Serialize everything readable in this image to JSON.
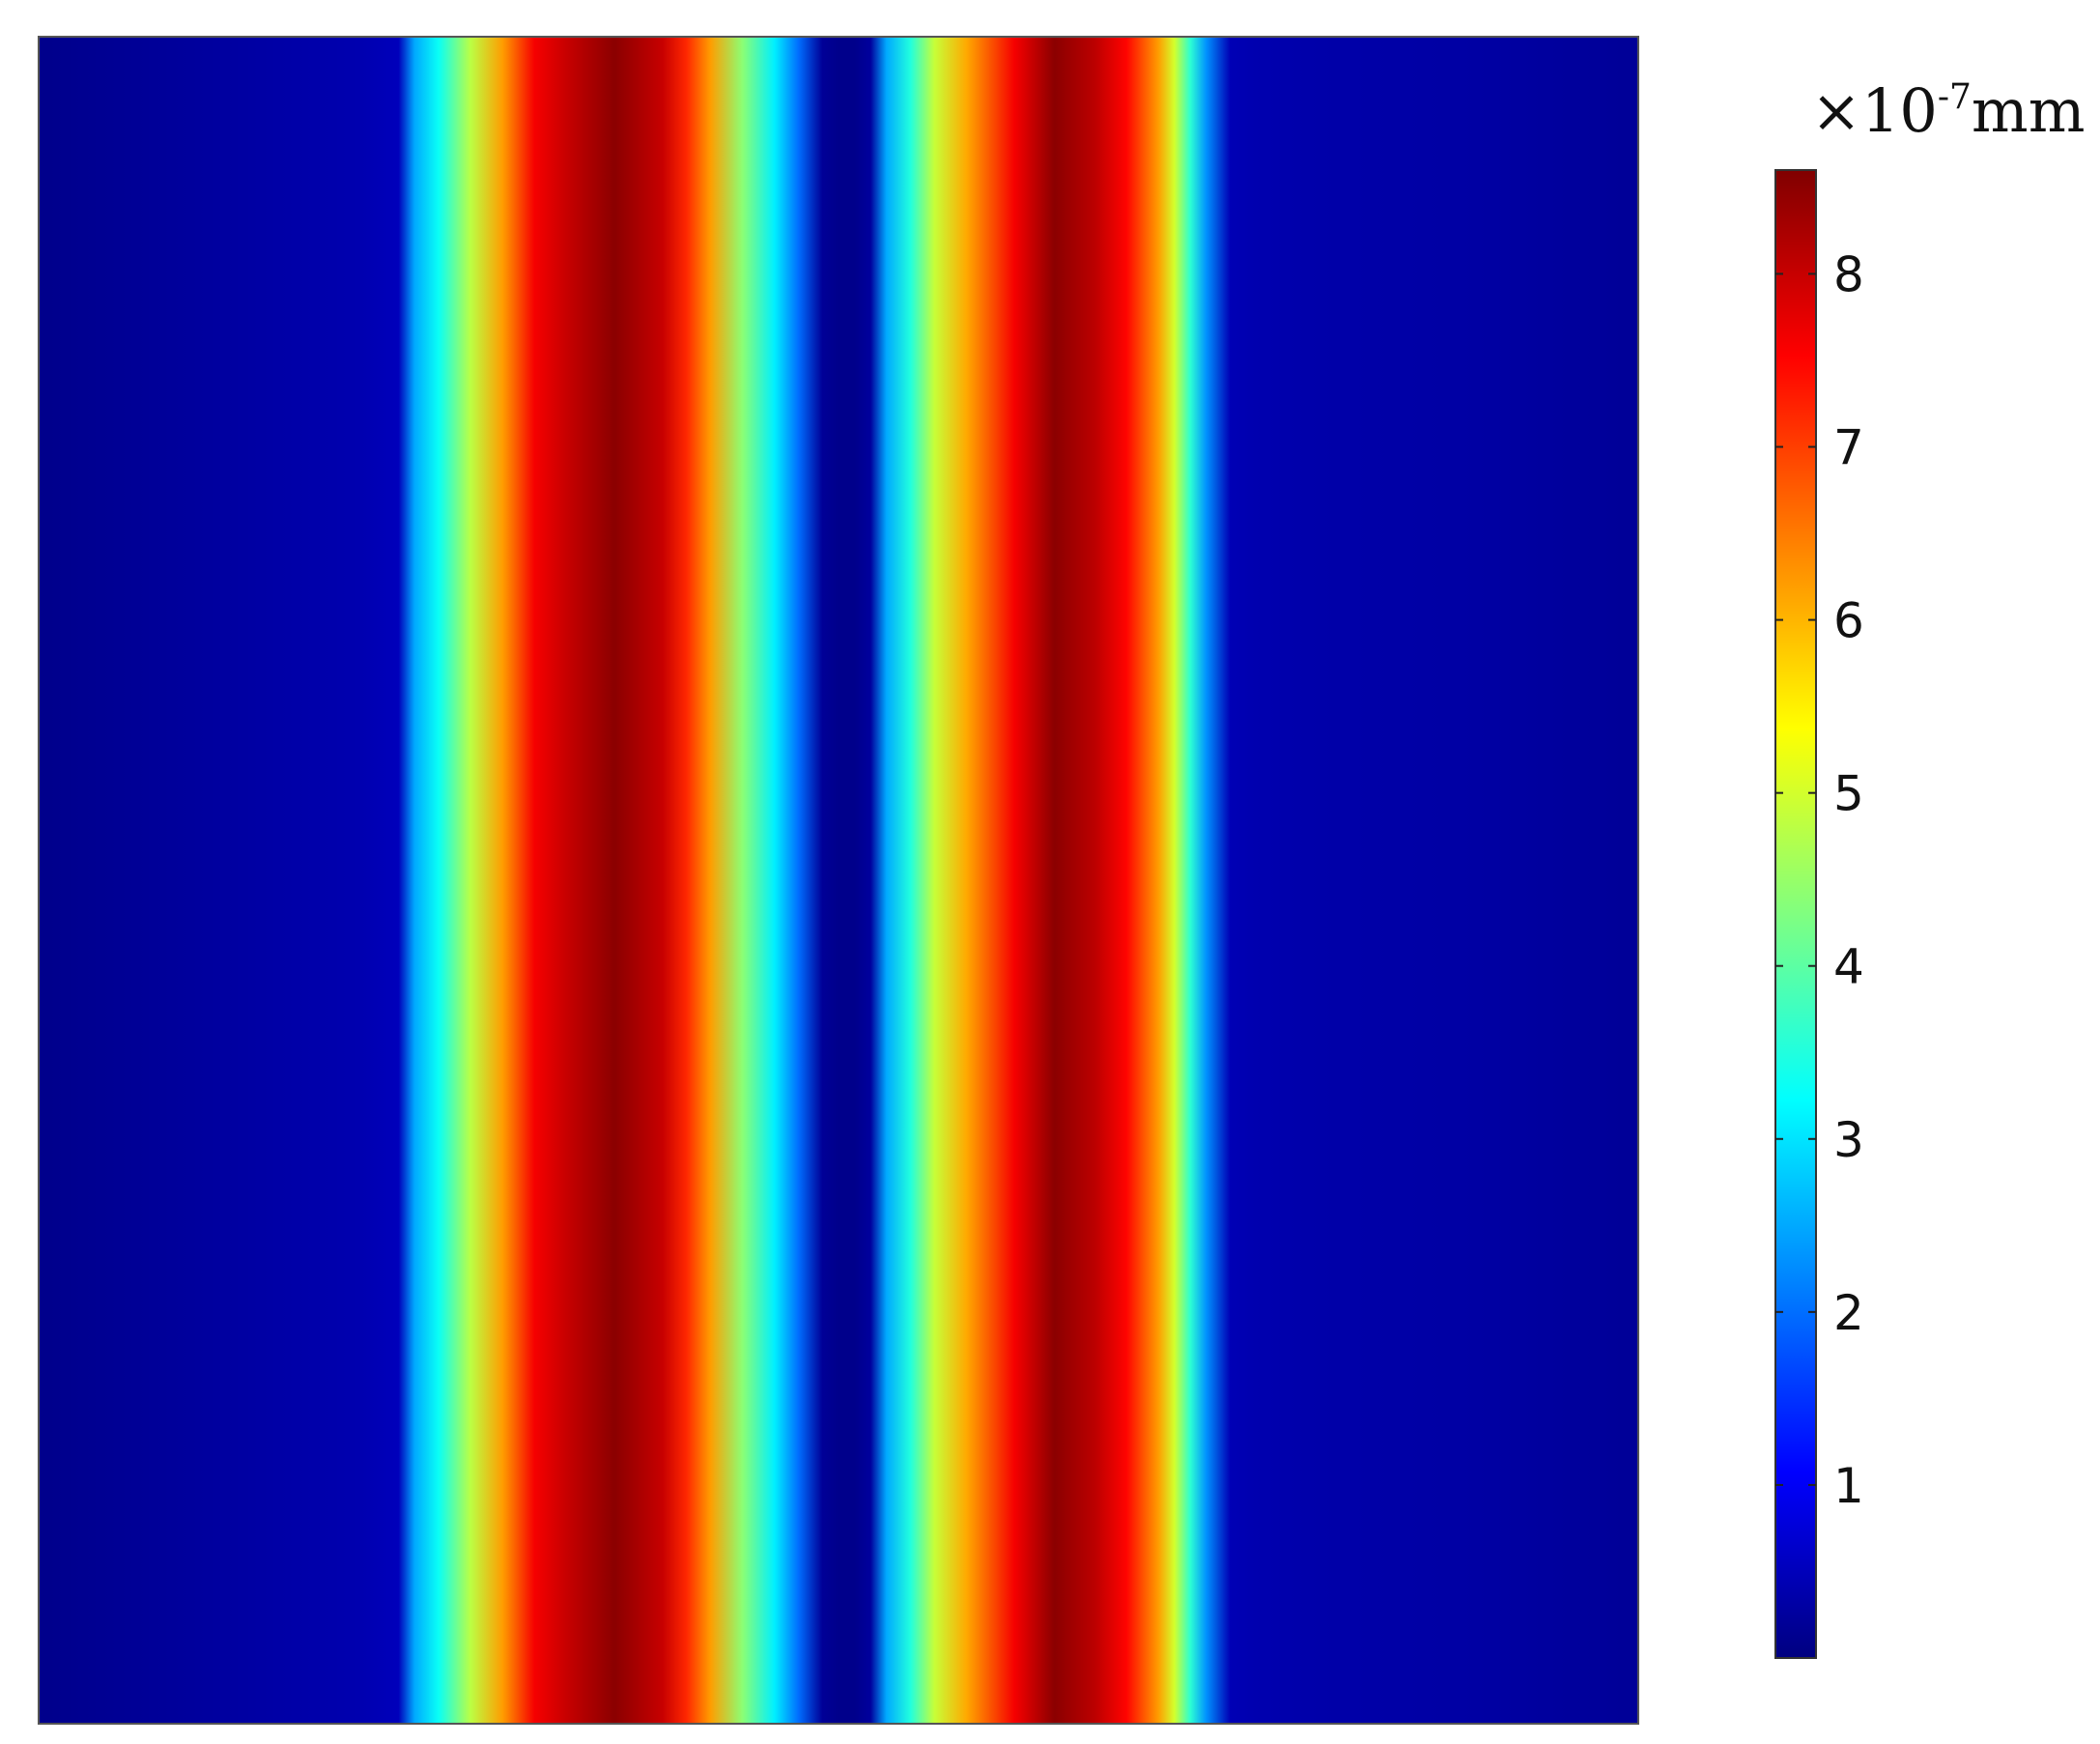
{
  "chart_data": {
    "type": "heatmap",
    "title": "",
    "xlabel": "",
    "ylabel": "",
    "colorbar": {
      "unit_prefix": "×10",
      "unit_exponent": "-7",
      "unit_suffix": "mm",
      "min": 0,
      "max": 8.6,
      "ticks": [
        1,
        2,
        3,
        4,
        5,
        6,
        7,
        8
      ],
      "tick_labels": [
        "1",
        "2",
        "3",
        "4",
        "5",
        "6",
        "7",
        "8"
      ],
      "colormap": "jet"
    },
    "profile": {
      "description_axis": "horizontal position (fraction of plot width)",
      "positions": [
        0.0,
        0.1,
        0.2,
        0.225,
        0.235,
        0.25,
        0.27,
        0.29,
        0.31,
        0.33,
        0.36,
        0.39,
        0.405,
        0.42,
        0.44,
        0.46,
        0.475,
        0.49,
        0.5,
        0.51,
        0.52,
        0.53,
        0.545,
        0.56,
        0.58,
        0.61,
        0.635,
        0.66,
        0.68,
        0.7,
        0.71,
        0.72,
        0.73,
        0.745,
        0.76,
        0.8,
        0.9,
        1.0
      ],
      "values": [
        0.1,
        0.25,
        0.4,
        0.5,
        2.5,
        3.3,
        4.8,
        6.2,
        7.6,
        8.0,
        8.5,
        8.0,
        7.2,
        6.2,
        4.4,
        3.1,
        2.0,
        0.2,
        0.1,
        0.1,
        0.25,
        2.5,
        3.5,
        4.9,
        6.1,
        7.6,
        8.5,
        8.1,
        7.5,
        6.2,
        5.0,
        3.6,
        2.3,
        0.45,
        0.4,
        0.35,
        0.3,
        0.2
      ]
    }
  }
}
